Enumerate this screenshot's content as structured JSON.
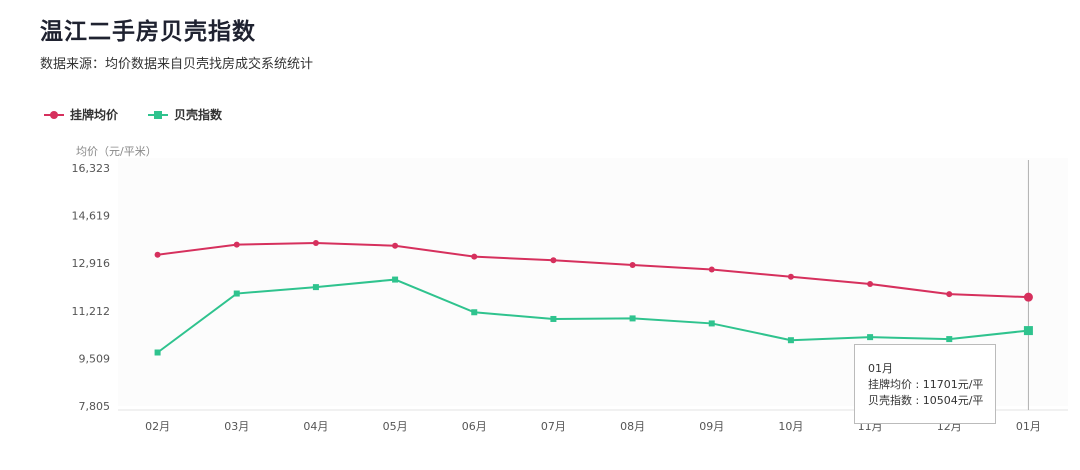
{
  "title": "温江二手房贝壳指数",
  "subtitle": "数据来源：均价数据来自贝壳找房成交系统统计",
  "y_unit_label": "均价（元/平米）",
  "colors": {
    "listing": "#d6305d",
    "index": "#2fc38e"
  },
  "legend": [
    {
      "name": "挂牌均价",
      "marker": "circle",
      "color": "#d6305d"
    },
    {
      "name": "贝壳指数",
      "marker": "square",
      "color": "#2fc38e"
    }
  ],
  "tooltip": {
    "header": "01月",
    "line1": "挂牌均价 : 11701元/平",
    "line2": "贝壳指数 : 10504元/平"
  },
  "chart_data": {
    "type": "line",
    "categories": [
      "02月",
      "03月",
      "04月",
      "05月",
      "06月",
      "07月",
      "08月",
      "09月",
      "10月",
      "11月",
      "12月",
      "01月"
    ],
    "ylim": [
      7805,
      16323
    ],
    "yticks": [
      7805,
      9509,
      11212,
      12916,
      14619,
      16323
    ],
    "ytick_labels": [
      "7,805",
      "9,509",
      "11,212",
      "12,916",
      "14,619",
      "16,323"
    ],
    "series": [
      {
        "name": "挂牌均价",
        "values": [
          13220,
          13580,
          13640,
          13540,
          13150,
          13020,
          12850,
          12690,
          12430,
          12170,
          11810,
          11701
        ]
      },
      {
        "name": "贝壳指数",
        "values": [
          9720,
          11830,
          12060,
          12330,
          11160,
          10920,
          10940,
          10760,
          10160,
          10270,
          10200,
          10504
        ]
      }
    ],
    "highlight_index": 11,
    "grid": false
  }
}
